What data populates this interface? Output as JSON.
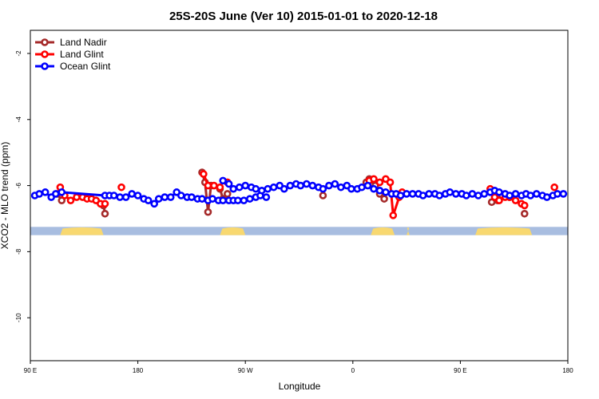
{
  "chart_data": {
    "type": "line",
    "title": "25S-20S June (Ver 10)   2015-01-01 to 2020-12-18",
    "xlabel": "Longitude",
    "ylabel": "XCO2 - MLO trend (ppm)",
    "xlim": [
      90,
      450
    ],
    "ylim": [
      -11.3,
      -1.3
    ],
    "x_ticks": [
      {
        "value": 90,
        "label": "90 E"
      },
      {
        "value": 162,
        "label": "180"
      },
      {
        "value": 234,
        "label": "90 W"
      },
      {
        "value": 306,
        "label": "0"
      },
      {
        "value": 378,
        "label": "90 E"
      },
      {
        "value": 450,
        "label": "180"
      }
    ],
    "y_ticks": [
      {
        "value": -2,
        "label": "-2"
      },
      {
        "value": -4,
        "label": "-4"
      },
      {
        "value": -6,
        "label": "-6"
      },
      {
        "value": -8,
        "label": "-8"
      },
      {
        "value": -10,
        "label": "-10"
      }
    ],
    "legend_position": "top-left",
    "colors": {
      "land_nadir": "#a52a2a",
      "land_glint": "#ff0000",
      "ocean_glint": "#0000ff",
      "ocean_strip": "#a8bde0",
      "land_strip": "#f8d870"
    },
    "series": [
      {
        "name": "Land Nadir",
        "color": "#a52a2a",
        "segments": [
          [
            [
              108,
              -6.25
            ],
            [
              111,
              -6.45
            ]
          ],
          [
            [
              139,
              -6.6
            ],
            [
              140,
              -6.85
            ]
          ],
          [
            [
              205,
              -5.6
            ],
            [
              207,
              -5.9
            ],
            [
              209,
              -6.8
            ],
            [
              211,
              -6.0
            ]
          ],
          [
            [
              217,
              -6.1
            ],
            [
              219,
              -6.4
            ],
            [
              222,
              -6.25
            ]
          ],
          [
            [
              286,
              -6.3
            ]
          ],
          [
            [
              315,
              -5.9
            ],
            [
              317,
              -5.8
            ],
            [
              321,
              -6.0
            ],
            [
              324,
              -6.25
            ],
            [
              327,
              -6.4
            ]
          ],
          [
            [
              399,
              -6.5
            ]
          ],
          [
            [
              403,
              -6.45
            ],
            [
              406,
              -6.3
            ],
            [
              411,
              -6.35
            ]
          ],
          [
            [
              421,
              -6.85
            ]
          ]
        ]
      },
      {
        "name": "Land Glint",
        "color": "#ff0000",
        "segments": [
          [
            [
              110,
              -6.05
            ],
            [
              113,
              -6.3
            ],
            [
              117,
              -6.45
            ],
            [
              121,
              -6.35
            ],
            [
              125,
              -6.35
            ],
            [
              128,
              -6.4
            ],
            [
              131,
              -6.4
            ],
            [
              134,
              -6.45
            ],
            [
              137,
              -6.55
            ],
            [
              140,
              -6.55
            ]
          ],
          [
            [
              151,
              -6.05
            ]
          ],
          [
            [
              206,
              -5.65
            ],
            [
              209,
              -6.0
            ],
            [
              213,
              -6.0
            ],
            [
              217,
              -6.05
            ]
          ],
          [
            [
              222,
              -5.9
            ]
          ],
          [
            [
              317,
              -5.85
            ],
            [
              320,
              -5.8
            ],
            [
              324,
              -5.9
            ],
            [
              328,
              -5.8
            ],
            [
              331,
              -5.9
            ],
            [
              333,
              -6.9
            ],
            [
              337,
              -6.35
            ],
            [
              339,
              -6.2
            ]
          ],
          [
            [
              398,
              -6.1
            ],
            [
              401,
              -6.35
            ],
            [
              404,
              -6.45
            ],
            [
              408,
              -6.35
            ],
            [
              411,
              -6.35
            ],
            [
              415,
              -6.45
            ],
            [
              419,
              -6.55
            ],
            [
              421,
              -6.6
            ]
          ],
          [
            [
              441,
              -6.05
            ]
          ]
        ]
      },
      {
        "name": "Ocean Glint",
        "color": "#0000ff",
        "segments": [
          [
            [
              93,
              -6.3
            ],
            [
              96,
              -6.25
            ],
            [
              100,
              -6.2
            ],
            [
              104,
              -6.35
            ],
            [
              107,
              -6.25
            ],
            [
              111,
              -6.2
            ],
            [
              140,
              -6.3
            ],
            [
              143,
              -6.3
            ],
            [
              146,
              -6.3
            ],
            [
              150,
              -6.35
            ],
            [
              154,
              -6.35
            ],
            [
              158,
              -6.25
            ],
            [
              162,
              -6.3
            ],
            [
              166,
              -6.4
            ],
            [
              169,
              -6.45
            ],
            [
              173,
              -6.55
            ],
            [
              176,
              -6.4
            ],
            [
              180,
              -6.35
            ],
            [
              184,
              -6.35
            ],
            [
              188,
              -6.2
            ],
            [
              191,
              -6.3
            ],
            [
              195,
              -6.35
            ],
            [
              198,
              -6.35
            ],
            [
              202,
              -6.4
            ],
            [
              205,
              -6.4
            ],
            [
              209,
              -6.45
            ],
            [
              212,
              -6.4
            ],
            [
              216,
              -6.45
            ],
            [
              219,
              -6.45
            ],
            [
              223,
              -6.45
            ],
            [
              226,
              -6.45
            ],
            [
              229,
              -6.45
            ],
            [
              233,
              -6.45
            ],
            [
              237,
              -6.4
            ],
            [
              241,
              -6.35
            ],
            [
              244,
              -6.3
            ],
            [
              248,
              -6.35
            ]
          ],
          [
            [
              219,
              -5.85
            ],
            [
              223,
              -5.95
            ],
            [
              226,
              -6.1
            ],
            [
              230,
              -6.05
            ],
            [
              234,
              -6.0
            ],
            [
              238,
              -6.05
            ],
            [
              241,
              -6.1
            ],
            [
              245,
              -6.15
            ],
            [
              249,
              -6.1
            ],
            [
              253,
              -6.05
            ],
            [
              257,
              -6.0
            ],
            [
              260,
              -6.1
            ],
            [
              264,
              -6.0
            ],
            [
              268,
              -5.95
            ],
            [
              271,
              -6.0
            ],
            [
              275,
              -5.95
            ],
            [
              279,
              -6.0
            ],
            [
              283,
              -6.05
            ],
            [
              286,
              -6.1
            ],
            [
              290,
              -6.0
            ],
            [
              294,
              -5.95
            ],
            [
              298,
              -6.05
            ],
            [
              302,
              -6.0
            ],
            [
              305,
              -6.1
            ],
            [
              309,
              -6.1
            ],
            [
              312,
              -6.05
            ],
            [
              316,
              -6.0
            ],
            [
              320,
              -6.1
            ],
            [
              324,
              -6.15
            ],
            [
              328,
              -6.2
            ],
            [
              332,
              -6.25
            ],
            [
              335,
              -6.25
            ],
            [
              338,
              -6.3
            ],
            [
              342,
              -6.25
            ]
          ],
          [
            [
              346,
              -6.25
            ],
            [
              350,
              -6.25
            ],
            [
              353,
              -6.3
            ],
            [
              357,
              -6.25
            ],
            [
              361,
              -6.25
            ],
            [
              364,
              -6.3
            ],
            [
              368,
              -6.25
            ],
            [
              371,
              -6.2
            ],
            [
              375,
              -6.25
            ],
            [
              379,
              -6.25
            ],
            [
              382,
              -6.3
            ],
            [
              386,
              -6.25
            ],
            [
              390,
              -6.3
            ],
            [
              394,
              -6.25
            ],
            [
              398,
              -6.2
            ],
            [
              401,
              -6.15
            ],
            [
              404,
              -6.2
            ],
            [
              408,
              -6.25
            ],
            [
              411,
              -6.3
            ],
            [
              415,
              -6.25
            ],
            [
              419,
              -6.3
            ],
            [
              422,
              -6.25
            ],
            [
              425,
              -6.3
            ],
            [
              429,
              -6.25
            ],
            [
              433,
              -6.3
            ],
            [
              436,
              -6.35
            ],
            [
              440,
              -6.3
            ],
            [
              443,
              -6.25
            ],
            [
              447,
              -6.25
            ]
          ]
        ]
      }
    ],
    "land_ocean_strip": {
      "y_range": [
        -7.5,
        -7.25
      ],
      "land_ranges": [
        [
          110,
          139
        ],
        [
          217,
          234
        ],
        [
          318,
          334
        ],
        [
          342,
          344
        ],
        [
          388,
          426
        ]
      ]
    }
  }
}
